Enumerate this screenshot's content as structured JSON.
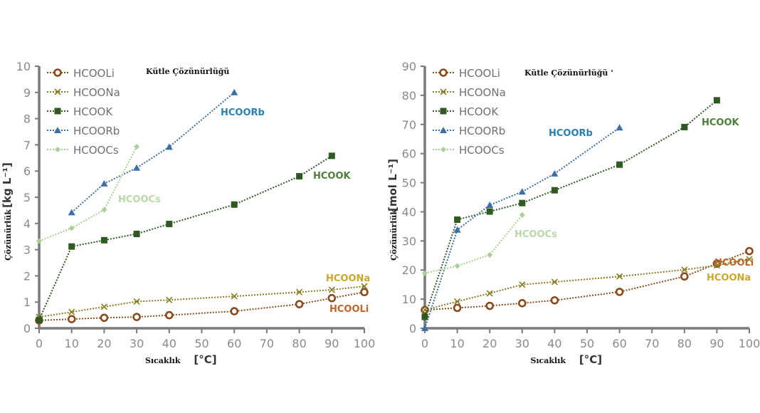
{
  "chart_data": [
    {
      "type": "line",
      "title": "Kütle Çözünürlüğü",
      "xlabel": "Sıcaklık",
      "xunit": "[°C]",
      "ylabel": "Çözünürlük",
      "yunit": "[kg L⁻¹]",
      "xlim": [
        0,
        100
      ],
      "ylim": [
        0,
        10
      ],
      "xticks": [
        0,
        10,
        20,
        30,
        40,
        50,
        60,
        70,
        80,
        90,
        100
      ],
      "yticks": [
        0,
        1,
        2,
        3,
        4,
        5,
        6,
        7,
        8,
        9,
        10
      ],
      "legend_position": "top-left",
      "series": [
        {
          "name": "HCOOLi",
          "color": "#8a4b1c",
          "marker": "circle",
          "x": [
            0,
            10,
            20,
            30,
            40,
            60,
            80,
            90,
            100
          ],
          "y": [
            0.3,
            0.35,
            0.4,
            0.43,
            0.5,
            0.65,
            0.92,
            1.15,
            1.38
          ],
          "label": "HCOOLi",
          "label_color": "#c0652a"
        },
        {
          "name": "HCOONa",
          "color": "#8a7a20",
          "marker": "x",
          "x": [
            0,
            10,
            20,
            30,
            40,
            60,
            80,
            90,
            100
          ],
          "y": [
            0.43,
            0.62,
            0.82,
            1.02,
            1.08,
            1.22,
            1.38,
            1.47,
            1.6
          ],
          "label": "HCOONa",
          "label_color": "#c9a82a"
        },
        {
          "name": "HCOOK",
          "color": "#2f5a22",
          "marker": "square",
          "x": [
            0,
            10,
            20,
            30,
            40,
            60,
            80,
            90
          ],
          "y": [
            0.32,
            3.12,
            3.36,
            3.6,
            3.98,
            4.72,
            5.8,
            6.58
          ],
          "label": "HCOOK",
          "label_color": "#4e7f3a"
        },
        {
          "name": "HCOORb",
          "color": "#3d6fa5",
          "marker": "triangle",
          "x": [
            10,
            20,
            30,
            40,
            60
          ],
          "y": [
            4.42,
            5.52,
            6.12,
            6.92,
            9.0
          ],
          "label": "HCOORb",
          "label_color": "#2a7fb0"
        },
        {
          "name": "HCOOCs",
          "color": "#a9cf96",
          "marker": "diamond",
          "x": [
            0,
            10,
            20,
            30
          ],
          "y": [
            3.33,
            3.82,
            4.52,
            6.93
          ],
          "label": "HCOOCs",
          "label_color": "#b7d8a8"
        }
      ]
    },
    {
      "type": "line",
      "title": "Kütle Çözünürlüğü",
      "title_suffix": "'",
      "xlabel": "Sıcaklık",
      "xunit": "[°C]",
      "ylabel": "Çözünürlük",
      "yunit": "[mol L⁻¹]",
      "xlim": [
        0,
        100
      ],
      "ylim": [
        0,
        90
      ],
      "xticks": [
        0,
        10,
        20,
        30,
        40,
        50,
        60,
        70,
        80,
        90,
        100
      ],
      "yticks": [
        0,
        10,
        20,
        30,
        40,
        50,
        60,
        70,
        80,
        90
      ],
      "legend_position": "top-left",
      "series": [
        {
          "name": "HCOOLi",
          "color": "#8a4b1c",
          "marker": "circle",
          "x": [
            0,
            10,
            20,
            30,
            40,
            60,
            80,
            90,
            100
          ],
          "y": [
            6.3,
            7.0,
            7.7,
            8.6,
            9.6,
            12.5,
            17.8,
            22.2,
            26.5
          ],
          "label": "HCOOLi",
          "label_color": "#c0652a"
        },
        {
          "name": "HCOONa",
          "color": "#8a7a20",
          "marker": "x",
          "x": [
            0,
            10,
            20,
            30,
            40,
            60,
            80,
            90,
            100
          ],
          "y": [
            6.3,
            9.2,
            12.0,
            15.0,
            15.9,
            17.8,
            20.1,
            21.6,
            23.7
          ],
          "label": "HCOONa",
          "label_color": "#c9a82a"
        },
        {
          "name": "HCOOK",
          "color": "#2f5a22",
          "marker": "square",
          "x": [
            0,
            10,
            20,
            30,
            40,
            60,
            80,
            90
          ],
          "y": [
            3.9,
            37.3,
            40.1,
            43.0,
            47.4,
            56.2,
            69.1,
            78.3
          ],
          "label": "HCOOK",
          "label_color": "#4e7f3a"
        },
        {
          "name": "HCOORb",
          "color": "#3d6fa5",
          "marker": "triangle",
          "x": [
            0,
            10,
            20,
            30,
            40,
            60
          ],
          "y": [
            0,
            33.8,
            42.3,
            46.9,
            53.1,
            68.9
          ],
          "label": "HCOORb",
          "label_color": "#2a7fb0"
        },
        {
          "name": "HCOOCs",
          "color": "#a9cf96",
          "marker": "diamond",
          "x": [
            0,
            10,
            20,
            30
          ],
          "y": [
            18.9,
            21.4,
            25.2,
            38.9
          ],
          "label": "HCOOCs",
          "label_color": "#b7d8a8"
        }
      ]
    }
  ]
}
